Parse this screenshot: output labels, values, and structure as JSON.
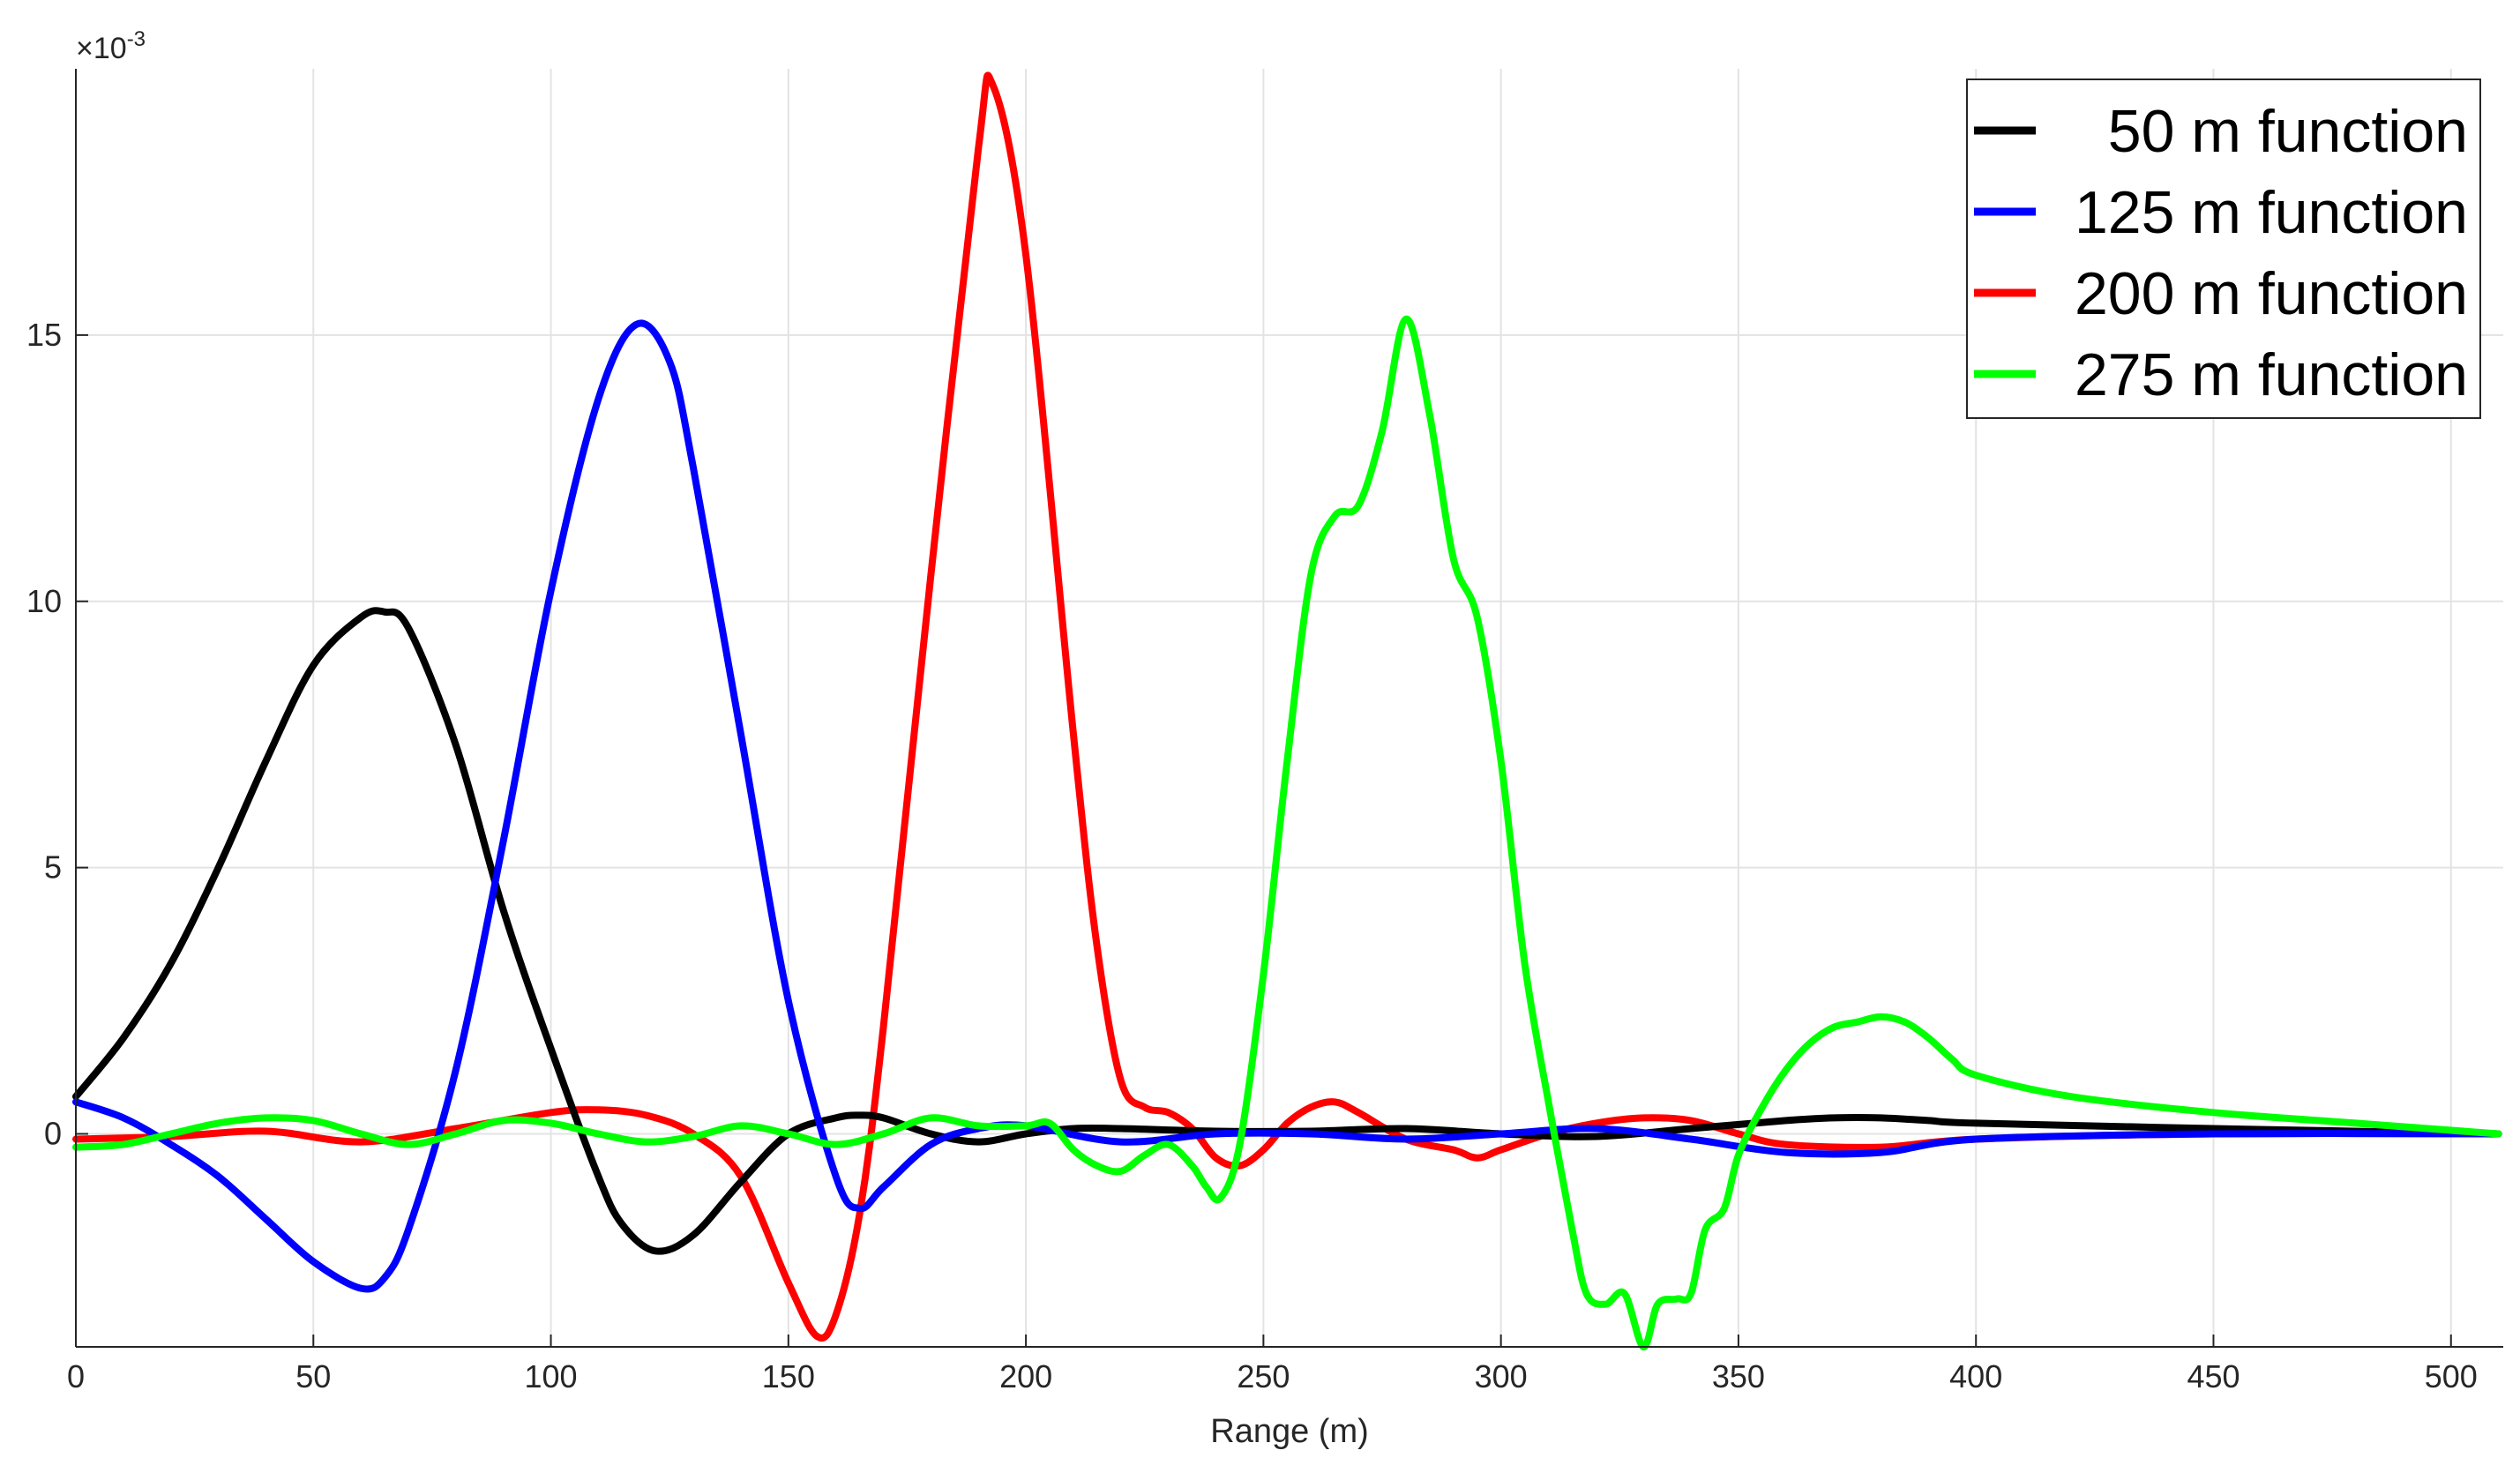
{
  "chart_data": {
    "type": "line",
    "title": "",
    "xlabel": "Range (m)",
    "ylabel": "",
    "y_exponent_prefix": "×10",
    "y_exponent_power": "-3",
    "xlim": [
      0,
      511
    ],
    "ylim": [
      -4,
      20
    ],
    "x_ticks": [
      0,
      50,
      100,
      150,
      200,
      250,
      300,
      350,
      400,
      450,
      500
    ],
    "x_tick_labels": [
      "0",
      "50",
      "100",
      "150",
      "200",
      "250",
      "300",
      "350",
      "400",
      "450",
      "500"
    ],
    "y_ticks": [
      0,
      5,
      10,
      15
    ],
    "y_tick_labels": [
      "0",
      "5",
      "10",
      "15"
    ],
    "grid": true,
    "legend_position": "top-right",
    "series": [
      {
        "name": "50 m function",
        "legend_label": "  50 m function",
        "color": "#000000",
        "x": [
          0,
          10,
          20,
          30,
          40,
          50,
          60,
          65,
          70,
          80,
          90,
          100,
          110,
          115,
          122,
          130,
          140,
          150,
          160,
          165,
          170,
          180,
          190,
          200,
          210,
          220,
          240,
          260,
          280,
          300,
          320,
          340,
          360,
          370,
          380,
          390,
          400,
          450,
          510
        ],
        "y": [
          0.7,
          1.8,
          3.2,
          5.0,
          7.0,
          8.8,
          9.7,
          9.8,
          9.5,
          7.3,
          4.2,
          1.6,
          -0.8,
          -1.7,
          -2.2,
          -1.9,
          -0.9,
          0.0,
          0.3,
          0.35,
          0.3,
          0.0,
          -0.15,
          0.0,
          0.1,
          0.1,
          0.05,
          0.05,
          0.1,
          0.0,
          -0.05,
          0.1,
          0.25,
          0.3,
          0.3,
          0.25,
          0.2,
          0.1,
          0.0
        ]
      },
      {
        "name": "125 m function",
        "legend_label": "125 m function",
        "color": "#0000ff",
        "x": [
          0,
          10,
          20,
          30,
          40,
          50,
          60,
          65,
          70,
          80,
          90,
          100,
          110,
          118,
          125,
          130,
          140,
          150,
          160,
          165,
          170,
          180,
          190,
          200,
          220,
          240,
          260,
          280,
          300,
          320,
          340,
          360,
          380,
          400,
          450,
          510
        ],
        "y": [
          0.6,
          0.3,
          -0.2,
          -0.8,
          -1.6,
          -2.4,
          -2.9,
          -2.7,
          -1.8,
          1.2,
          5.5,
          10.2,
          13.8,
          15.2,
          14.5,
          12.5,
          7.5,
          2.5,
          -0.8,
          -1.4,
          -1.0,
          -0.2,
          0.1,
          0.15,
          -0.15,
          0.0,
          0.0,
          -0.1,
          0.0,
          0.1,
          -0.1,
          -0.35,
          -0.35,
          -0.1,
          0.0,
          0.0
        ]
      },
      {
        "name": "200 m function",
        "legend_label": "200 m function",
        "color": "#ff0000",
        "x": [
          0,
          20,
          40,
          60,
          80,
          100,
          110,
          120,
          130,
          140,
          150,
          156,
          160,
          165,
          170,
          180,
          190,
          193,
          200,
          210,
          215,
          220,
          225,
          230,
          235,
          240,
          245,
          250,
          255,
          260,
          265,
          270,
          280,
          290,
          295,
          300,
          310,
          320,
          330,
          340,
          350,
          360,
          380,
          400,
          450,
          510
        ],
        "y": [
          -0.1,
          -0.05,
          0.05,
          -0.15,
          0.1,
          0.4,
          0.45,
          0.35,
          0.0,
          -0.8,
          -2.8,
          -3.8,
          -3.4,
          -1.5,
          2.0,
          10.5,
          18.5,
          19.7,
          16.5,
          7.5,
          3.5,
          1.0,
          0.5,
          0.4,
          0.1,
          -0.45,
          -0.6,
          -0.3,
          0.2,
          0.5,
          0.6,
          0.4,
          -0.1,
          -0.3,
          -0.45,
          -0.3,
          0.0,
          0.2,
          0.3,
          0.25,
          0.0,
          -0.2,
          -0.25,
          -0.1,
          0.0,
          0.0
        ]
      },
      {
        "name": "275 m function",
        "legend_label": "275 m function",
        "color": "#00ff00",
        "x": [
          0,
          10,
          20,
          30,
          40,
          50,
          60,
          70,
          80,
          90,
          100,
          110,
          120,
          130,
          140,
          150,
          160,
          170,
          180,
          190,
          200,
          205,
          210,
          215,
          220,
          225,
          230,
          235,
          238,
          241,
          245,
          250,
          255,
          260,
          265,
          270,
          275,
          280,
          285,
          290,
          295,
          300,
          305,
          310,
          315,
          318,
          322,
          326,
          330,
          333,
          337,
          340,
          343,
          347,
          350,
          355,
          360,
          365,
          370,
          375,
          380,
          385,
          390,
          395,
          400,
          420,
          450,
          480,
          510
        ],
        "y": [
          -0.25,
          -0.2,
          0.0,
          0.2,
          0.3,
          0.25,
          0.0,
          -0.2,
          0.0,
          0.25,
          0.2,
          0.0,
          -0.15,
          -0.05,
          0.15,
          0.0,
          -0.2,
          0.0,
          0.3,
          0.15,
          0.15,
          0.2,
          -0.3,
          -0.6,
          -0.7,
          -0.4,
          -0.2,
          -0.6,
          -1.0,
          -1.2,
          -0.2,
          3.0,
          7.0,
          10.5,
          11.6,
          11.8,
          13.2,
          15.3,
          13.5,
          10.8,
          9.7,
          7.0,
          3.2,
          0.6,
          -1.8,
          -3.0,
          -3.2,
          -3.0,
          -4.0,
          -3.2,
          -3.1,
          -3.0,
          -1.8,
          -1.4,
          -0.4,
          0.5,
          1.2,
          1.7,
          2.0,
          2.1,
          2.2,
          2.1,
          1.8,
          1.4,
          1.1,
          0.7,
          0.4,
          0.2,
          0.0
        ]
      }
    ]
  }
}
